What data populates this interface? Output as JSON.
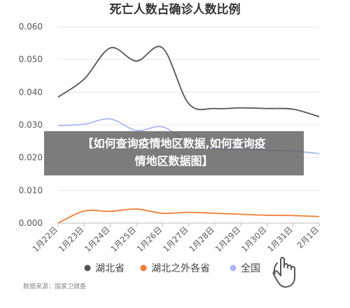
{
  "overlay": {
    "line1": "【如何查询疫情地区数据,如何查询疫",
    "line2": "情地区数据图】"
  },
  "source_note": "数据来源：国家卫健委",
  "chart_data": {
    "type": "line",
    "title": "死亡人数占确诊人数比例",
    "xlabel": "",
    "ylabel": "",
    "ylim": [
      0,
      0.06
    ],
    "yticks": [
      "0.000",
      "0.010",
      "0.020",
      "0.030",
      "0.040",
      "0.050",
      "0.060"
    ],
    "categories": [
      "1月22日",
      "1月23日",
      "1月24日",
      "1月25日",
      "1月26日",
      "1月27日",
      "1月28日",
      "1月29日",
      "1月30日",
      "1月31日",
      "2月1日"
    ],
    "grid": "horizontal",
    "legend_position": "bottom",
    "series": [
      {
        "name": "湖北省",
        "color": "#555555",
        "values": [
          0.0385,
          0.044,
          0.0535,
          0.0495,
          0.0535,
          0.0365,
          0.035,
          0.0352,
          0.035,
          0.0348,
          0.0325
        ]
      },
      {
        "name": "湖北之外各省",
        "color": "#ef7d32",
        "values": [
          0.0,
          0.0037,
          0.0036,
          0.0043,
          0.003,
          0.0033,
          0.003,
          0.0027,
          0.0024,
          0.0023,
          0.002
        ]
      },
      {
        "name": "全国",
        "color": "#a9b8f2",
        "values": [
          0.0298,
          0.0302,
          0.0318,
          0.0283,
          0.0294,
          0.0245,
          0.0227,
          0.0225,
          0.0222,
          0.022,
          0.0212
        ]
      }
    ]
  }
}
